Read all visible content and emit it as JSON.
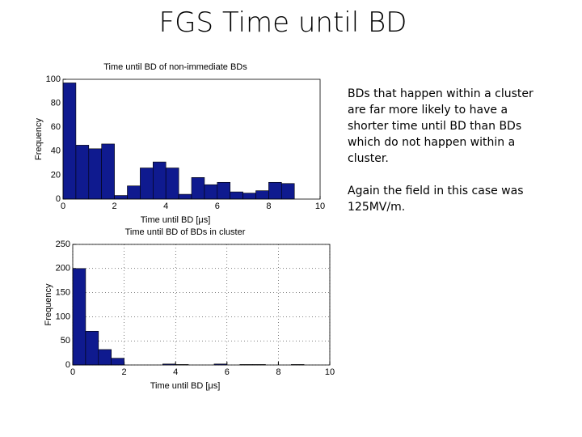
{
  "title": "FGS Time until BD",
  "paragraphs": [
    "BDs that happen within a cluster are far more likely to have a shorter time until BD than BDs which do not happen within a cluster.",
    "Again the field in this case was 125MV/m."
  ],
  "chart_data": [
    {
      "type": "histogram",
      "title": "Time until BD of non-immediate BDs",
      "x_label": "Time until BD [μs]",
      "y_label": "Frequency",
      "bins": [
        0,
        0.5,
        1,
        1.5,
        2,
        2.5,
        3,
        3.5,
        4,
        4.5,
        5,
        5.5,
        6,
        6.5,
        7,
        7.5,
        8,
        8.5,
        9
      ],
      "values": [
        97,
        45,
        42,
        46,
        3,
        11,
        26,
        31,
        26,
        4,
        18,
        12,
        14,
        6,
        5,
        7,
        14,
        13
      ],
      "color": "#0f1a8f",
      "xlim": [
        0,
        10
      ],
      "xticks": [
        0,
        2,
        4,
        6,
        8,
        10
      ],
      "ylim": [
        0,
        100
      ],
      "yticks": [
        0,
        20,
        40,
        60,
        80,
        100
      ],
      "grid": false
    },
    {
      "type": "histogram",
      "title": "Time until BD of BDs in cluster",
      "x_label": "Time until BD [μs]",
      "y_label": "Frequency",
      "bins": [
        0,
        0.5,
        1,
        1.5,
        2,
        2.5,
        3,
        3.5,
        4,
        4.5,
        5,
        5.5,
        6,
        6.5,
        7,
        7.5,
        8,
        8.5,
        9
      ],
      "values": [
        200,
        70,
        32,
        14,
        0,
        0,
        0,
        2,
        1,
        0,
        0,
        2,
        0,
        1,
        1,
        0,
        0,
        1
      ],
      "color": "#0f1a8f",
      "xlim": [
        0,
        10
      ],
      "xticks": [
        0,
        2,
        4,
        6,
        8,
        10
      ],
      "ylim": [
        0,
        250
      ],
      "yticks": [
        0,
        50,
        100,
        150,
        200,
        250
      ],
      "grid": true
    }
  ]
}
